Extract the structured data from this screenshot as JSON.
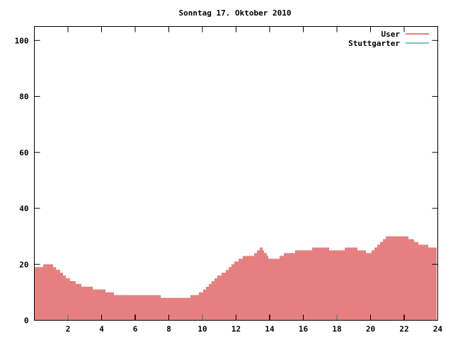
{
  "chart_data": {
    "type": "bar",
    "title": "Sonntag 17. Oktober 2010",
    "xlabel": "",
    "ylabel": "",
    "xlim": [
      0,
      24
    ],
    "ylim": [
      0,
      105
    ],
    "x_ticks": [
      2,
      4,
      6,
      8,
      10,
      12,
      14,
      16,
      18,
      20,
      22,
      24
    ],
    "y_ticks": [
      0,
      20,
      40,
      60,
      80,
      100
    ],
    "grid": false,
    "legend_position": "top-right",
    "series": [
      {
        "name": "User",
        "color": "#cc0000",
        "x": [
          0,
          1,
          2,
          3,
          4,
          5,
          6,
          7,
          8,
          9,
          10,
          10.5,
          11,
          11.5,
          12,
          12.5,
          13,
          13.5,
          14,
          14.5,
          15,
          16,
          17,
          18,
          19,
          20,
          21,
          22,
          22.5,
          23,
          23.9
        ],
        "values": [
          19,
          20,
          15,
          12,
          11,
          9,
          9,
          9,
          8,
          8,
          10,
          13,
          16,
          18,
          21,
          23,
          23,
          26,
          22,
          22,
          24,
          25,
          26,
          25,
          26,
          24,
          30,
          30,
          29,
          27,
          26
        ]
      },
      {
        "name": "Stuttgarter",
        "color": "#008080",
        "x": [],
        "values": []
      }
    ]
  }
}
